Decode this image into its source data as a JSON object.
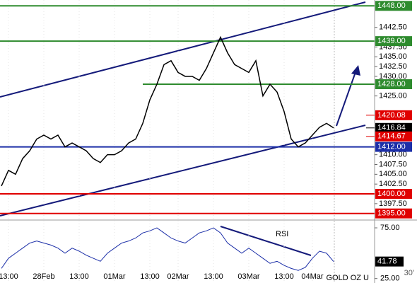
{
  "chart_data": {
    "type": "line",
    "instrument": "GOLD OZ U",
    "timeframe": "30'",
    "x": [
      0,
      1,
      2,
      3,
      4,
      5,
      6,
      7,
      8,
      9,
      10,
      11,
      12,
      13,
      14,
      15,
      16,
      17,
      18,
      19,
      20,
      21,
      22,
      23,
      24,
      25,
      26,
      27,
      28,
      29,
      30,
      31,
      32,
      33,
      34,
      35,
      36,
      37,
      38,
      39,
      40,
      41,
      42,
      43,
      44,
      45,
      46,
      47
    ],
    "xlim": [
      -0.2,
      52.8
    ],
    "xticks": [
      {
        "value": 1,
        "label": "13:00"
      },
      {
        "value": 6,
        "label": "28Feb"
      },
      {
        "value": 11,
        "label": "13:00"
      },
      {
        "value": 16,
        "label": "01Mar"
      },
      {
        "value": 21,
        "label": "13:00"
      },
      {
        "value": 25,
        "label": "02Mar"
      },
      {
        "value": 30,
        "label": "13:00"
      },
      {
        "value": 35,
        "label": "03Mar"
      },
      {
        "value": 40,
        "label": "13:00"
      },
      {
        "value": 44,
        "label": "04Mar"
      }
    ],
    "series": [
      {
        "color": "#000000",
        "values": [
          1402,
          1406,
          1405,
          1409,
          1411,
          1414,
          1415,
          1414,
          1415,
          1412,
          1413,
          1412,
          1411,
          1409,
          1408,
          1410,
          1410,
          1411,
          1413,
          1414,
          1418,
          1424,
          1428,
          1433,
          1434,
          1431,
          1430,
          1430,
          1429,
          1432,
          1436,
          1440,
          1436,
          1433,
          1432,
          1431,
          1434,
          1425,
          1428,
          1426,
          1421,
          1414,
          1412,
          1413,
          1415,
          1417,
          1418,
          1416.84
        ]
      }
    ],
    "ylim": [
      1393.5,
      1449.5
    ],
    "yticks": [
      {
        "value": 1442.5,
        "label": "1442.50"
      },
      {
        "value": 1437.5,
        "label": "1437.50"
      },
      {
        "value": 1435,
        "label": "1435.00"
      },
      {
        "value": 1432.5,
        "label": "1432.50"
      },
      {
        "value": 1430,
        "label": "1430.00"
      },
      {
        "value": 1425,
        "label": "1425.00"
      },
      {
        "value": 1410,
        "label": "1410.00"
      },
      {
        "value": 1407.5,
        "label": "1407.50"
      },
      {
        "value": 1405,
        "label": "1405.00"
      },
      {
        "value": 1402.5,
        "label": "1402.50"
      },
      {
        "value": 1397.5,
        "label": "1397.50"
      }
    ],
    "levels": [
      {
        "value": 1448,
        "label": "1448.00",
        "color": "#2e8b2e"
      },
      {
        "value": 1439,
        "label": "1439.00",
        "color": "#2e8b2e"
      },
      {
        "value": 1428,
        "label": "1428.00",
        "color": "#2e8b2e",
        "x_from": 20
      },
      {
        "value": 1412,
        "label": "1412.00",
        "color": "#1c2fa8"
      },
      {
        "value": 1400,
        "label": "1400.00",
        "color": "#e00000"
      },
      {
        "value": 1395,
        "label": "1395.00",
        "color": "#e00000"
      }
    ],
    "markers": [
      {
        "value": 1420.08,
        "label": "1420.08",
        "color": "#e00000"
      },
      {
        "value": 1416.84,
        "label": "1416.84",
        "color": "#000000"
      },
      {
        "value": 1414.67,
        "label": "1414.67",
        "color": "#e00000"
      }
    ],
    "rsi": {
      "title": "RSI",
      "values": [
        35,
        45,
        50,
        55,
        60,
        62,
        60,
        58,
        55,
        50,
        55,
        52,
        48,
        45,
        42,
        50,
        55,
        60,
        62,
        65,
        70,
        72,
        75,
        70,
        65,
        62,
        60,
        65,
        70,
        72,
        75,
        70,
        60,
        55,
        50,
        55,
        50,
        45,
        40,
        42,
        38,
        35,
        33,
        36,
        45,
        52,
        50,
        41.78
      ],
      "value_labels": [
        null,
        null,
        null,
        null,
        null,
        null,
        null,
        null,
        null,
        null,
        null,
        null,
        null,
        null,
        null,
        null,
        null,
        null,
        null,
        null,
        null,
        null,
        null,
        null,
        null,
        null,
        null,
        null,
        null,
        null,
        null,
        null,
        null,
        null,
        null,
        null,
        null,
        null,
        null,
        null,
        null,
        null,
        null,
        null,
        null,
        null,
        null,
        "41.78"
      ],
      "color": "#1c2fa8",
      "ylim": [
        22,
        82
      ],
      "yticks": [
        {
          "value": 75,
          "label": "75.00"
        },
        {
          "value": 25,
          "label": "25.00"
        }
      ]
    }
  }
}
